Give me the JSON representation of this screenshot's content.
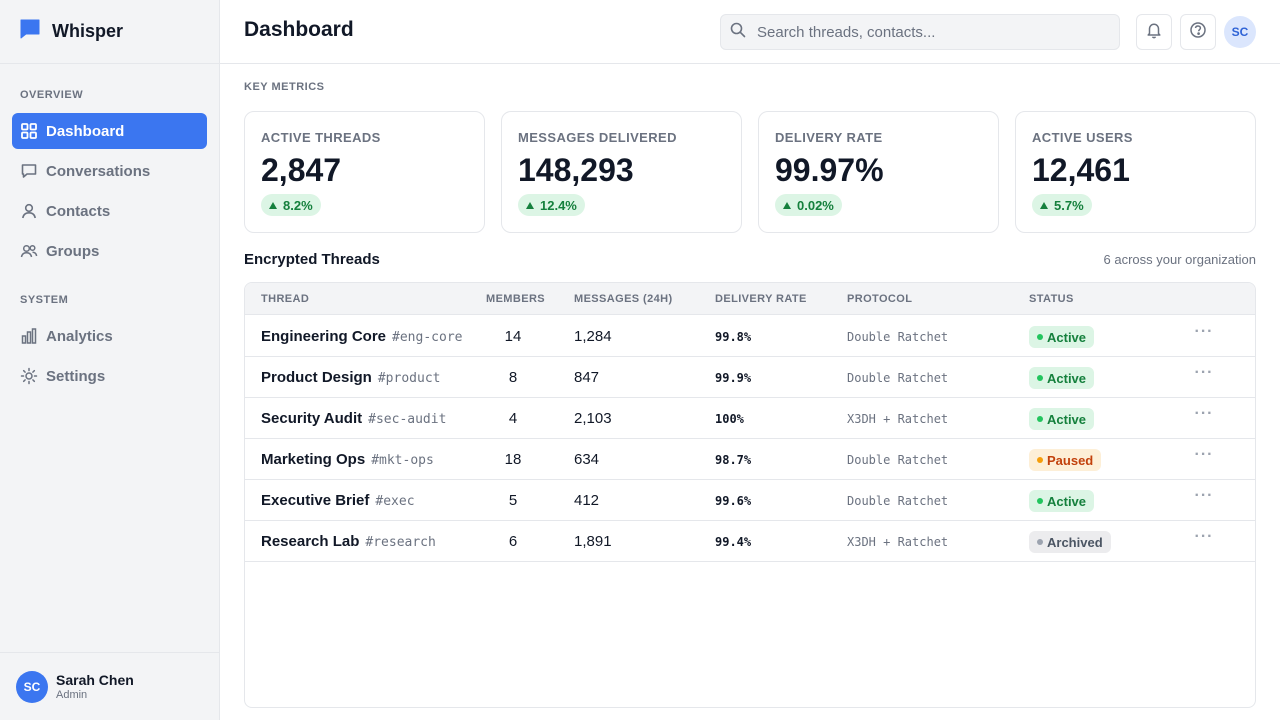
{
  "app": {
    "name": "Whisper"
  },
  "sidebar": {
    "sections": [
      {
        "label": "OVERVIEW"
      },
      {
        "label": "SYSTEM"
      }
    ],
    "items": [
      {
        "label": "Dashboard",
        "icon": "grid-icon",
        "active": true
      },
      {
        "label": "Conversations",
        "icon": "message-icon"
      },
      {
        "label": "Contacts",
        "icon": "user-icon"
      },
      {
        "label": "Groups",
        "icon": "users-icon"
      },
      {
        "label": "Analytics",
        "icon": "bar-chart-icon"
      },
      {
        "label": "Settings",
        "icon": "sun-gear-icon"
      }
    ],
    "user": {
      "initials": "SC",
      "name": "Sarah Chen",
      "role": "Admin"
    }
  },
  "header": {
    "title": "Dashboard",
    "search_placeholder": "Search threads, contacts...",
    "avatar_initials": "SC"
  },
  "metrics": {
    "section_label": "KEY METRICS",
    "cards": [
      {
        "label": "ACTIVE THREADS",
        "value": "2,847",
        "delta": "8.2%"
      },
      {
        "label": "MESSAGES DELIVERED",
        "value": "148,293",
        "delta": "12.4%"
      },
      {
        "label": "DELIVERY RATE",
        "value": "99.97%",
        "delta": "0.02%"
      },
      {
        "label": "ACTIVE USERS",
        "value": "12,461",
        "delta": "5.7%"
      }
    ]
  },
  "threads": {
    "title": "Encrypted Threads",
    "subtitle": "6 across your organization",
    "columns": [
      "THREAD",
      "MEMBERS",
      "MESSAGES (24H)",
      "DELIVERY RATE",
      "PROTOCOL",
      "STATUS"
    ],
    "rows": [
      {
        "name": "Engineering Core",
        "tag": "#eng-core",
        "members": "14",
        "messages": "1,284",
        "rate": "99.8%",
        "protocol": "Double Ratchet",
        "status": "Active"
      },
      {
        "name": "Product Design",
        "tag": "#product",
        "members": "8",
        "messages": "847",
        "rate": "99.9%",
        "protocol": "Double Ratchet",
        "status": "Active"
      },
      {
        "name": "Security Audit",
        "tag": "#sec-audit",
        "members": "4",
        "messages": "2,103",
        "rate": "100%",
        "protocol": "X3DH + Ratchet",
        "status": "Active"
      },
      {
        "name": "Marketing Ops",
        "tag": "#mkt-ops",
        "members": "18",
        "messages": "634",
        "rate": "98.7%",
        "protocol": "Double Ratchet",
        "status": "Paused"
      },
      {
        "name": "Executive Brief",
        "tag": "#exec",
        "members": "5",
        "messages": "412",
        "rate": "99.6%",
        "protocol": "Double Ratchet",
        "status": "Active"
      },
      {
        "name": "Research Lab",
        "tag": "#research",
        "members": "6",
        "messages": "1,891",
        "rate": "99.4%",
        "protocol": "X3DH + Ratchet",
        "status": "Archived"
      }
    ],
    "more_label": "···"
  },
  "colors": {
    "accent": "#3b76f0",
    "active_badge": "#15803d",
    "paused_badge": "#c2410c",
    "archived_badge": "#4b5563"
  }
}
